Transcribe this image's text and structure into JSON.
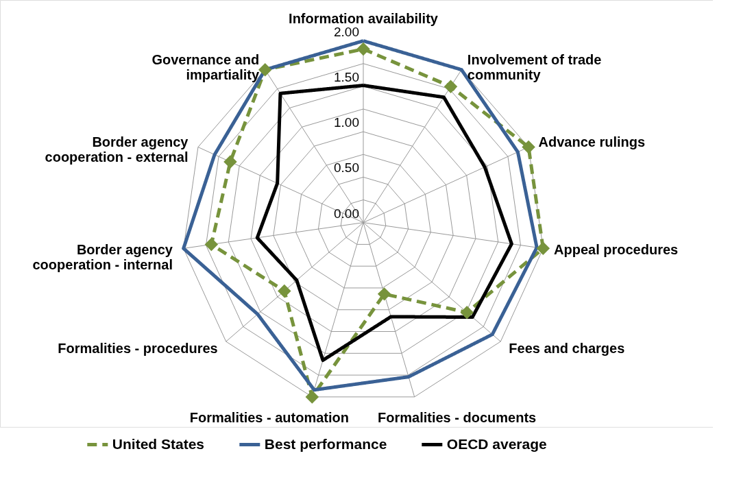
{
  "chart_data": {
    "type": "radar",
    "categories": [
      "Information availability",
      "Involvement of trade\ncommunity",
      "Advance rulings",
      "Appeal procedures",
      "Fees and charges",
      "Formalities - documents",
      "Formalities - automation",
      "Formalities - procedures",
      "Border agency\ncooperation - internal",
      "Border agency\ncooperation - external",
      "Governance and\nimpartiality"
    ],
    "series": [
      {
        "name": "United States",
        "color": "#77933c",
        "line_style": "dashed",
        "marker": "diamond",
        "values": [
          1.91,
          1.78,
          2.0,
          2.0,
          1.51,
          0.82,
          2.0,
          1.15,
          1.69,
          1.61,
          2.0
        ]
      },
      {
        "name": "Best performance",
        "color": "#3a6195",
        "line_style": "solid",
        "marker": "none",
        "values": [
          2.0,
          2.0,
          1.87,
          1.93,
          1.88,
          1.77,
          1.92,
          1.54,
          2.0,
          1.8,
          2.0
        ]
      },
      {
        "name": "OECD average",
        "color": "#000000",
        "line_style": "solid",
        "marker": "none",
        "values": [
          1.51,
          1.64,
          1.47,
          1.65,
          1.59,
          1.08,
          1.58,
          0.97,
          1.18,
          1.04,
          1.69
        ]
      }
    ],
    "ylim": [
      0,
      2.0
    ],
    "yticks": [
      {
        "value": 0,
        "label": "0.00"
      },
      {
        "value": 0.5,
        "label": "0.50"
      },
      {
        "value": 1.0,
        "label": "1.00"
      },
      {
        "value": 1.5,
        "label": "1.50"
      },
      {
        "value": 2.0,
        "label": "2.00"
      }
    ],
    "grid": true,
    "legend": "bottom"
  }
}
